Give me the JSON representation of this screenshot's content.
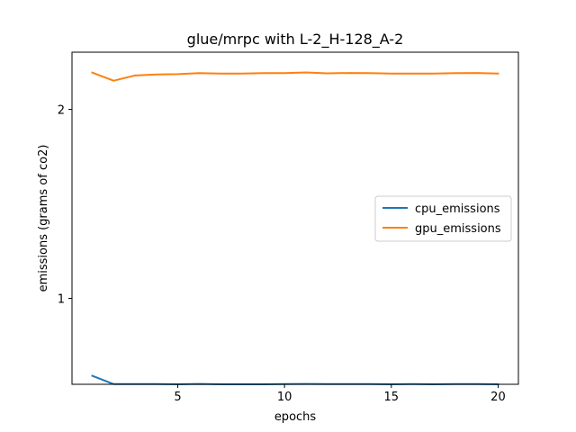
{
  "chart_data": {
    "type": "line",
    "title": "glue/mrpc with L-2_H-128_A-2",
    "xlabel": "epochs",
    "ylabel": "emissions (grams of co2)",
    "x": [
      1,
      2,
      3,
      4,
      5,
      6,
      7,
      8,
      9,
      10,
      11,
      12,
      13,
      14,
      15,
      16,
      17,
      18,
      19,
      20
    ],
    "xlim": [
      0.05,
      20.95
    ],
    "ylim": [
      0.545,
      2.303
    ],
    "xticks": [
      5,
      10,
      15,
      20
    ],
    "yticks": [
      1,
      2
    ],
    "grid": false,
    "legend_position": "center-right",
    "series": [
      {
        "name": "cpu_emissions",
        "color": "#1f77b4",
        "values": [
          0.59,
          0.546,
          0.546,
          0.546,
          0.545,
          0.547,
          0.545,
          0.545,
          0.545,
          0.546,
          0.547,
          0.546,
          0.546,
          0.546,
          0.545,
          0.546,
          0.545,
          0.546,
          0.546,
          0.545
        ]
      },
      {
        "name": "gpu_emissions",
        "color": "#ff7f0e",
        "values": [
          2.195,
          2.152,
          2.18,
          2.185,
          2.187,
          2.192,
          2.19,
          2.19,
          2.192,
          2.192,
          2.196,
          2.191,
          2.193,
          2.192,
          2.19,
          2.19,
          2.19,
          2.192,
          2.193,
          2.19
        ]
      }
    ]
  }
}
